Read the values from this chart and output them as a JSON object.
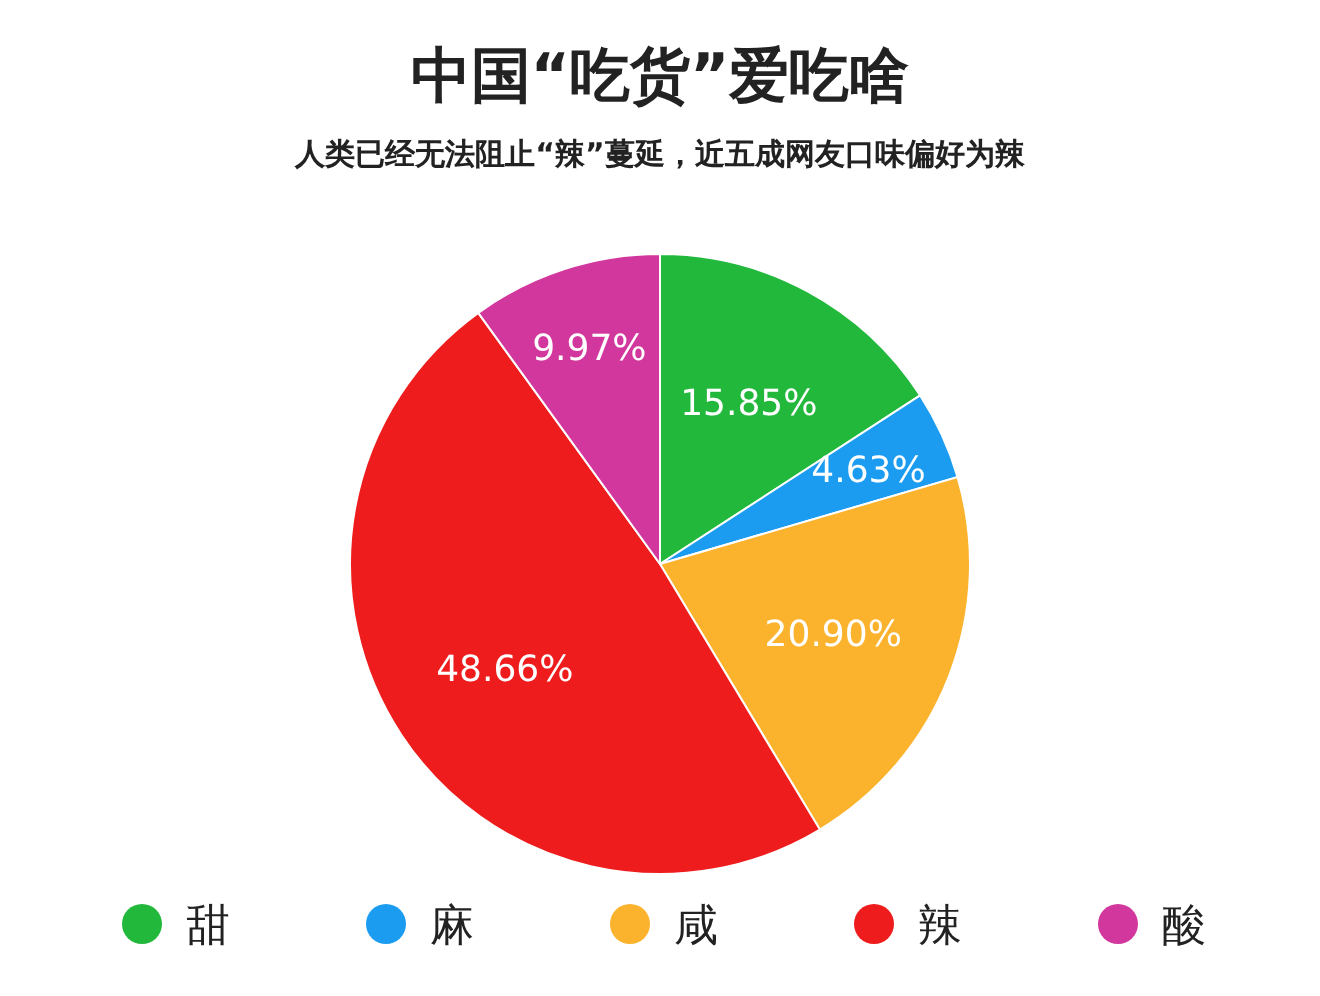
{
  "chart_data": {
    "type": "pie",
    "title": "中国“吃货”爱吃啥",
    "subtitle": "人类已经无法阻止“辣”蔓延，近五成网友口味偏好为辣",
    "categories": [
      "甜",
      "麻",
      "咸",
      "辣",
      "酸"
    ],
    "values": [
      15.85,
      4.63,
      20.9,
      48.66,
      9.97
    ],
    "value_labels": [
      "15.85%",
      "4.63%",
      "20.90%",
      "48.66%",
      "9.97%"
    ],
    "colors": [
      "#22b83c",
      "#1c9cf0",
      "#fbb32e",
      "#ee1c1c",
      "#d2379d"
    ],
    "legend": "bottom"
  }
}
